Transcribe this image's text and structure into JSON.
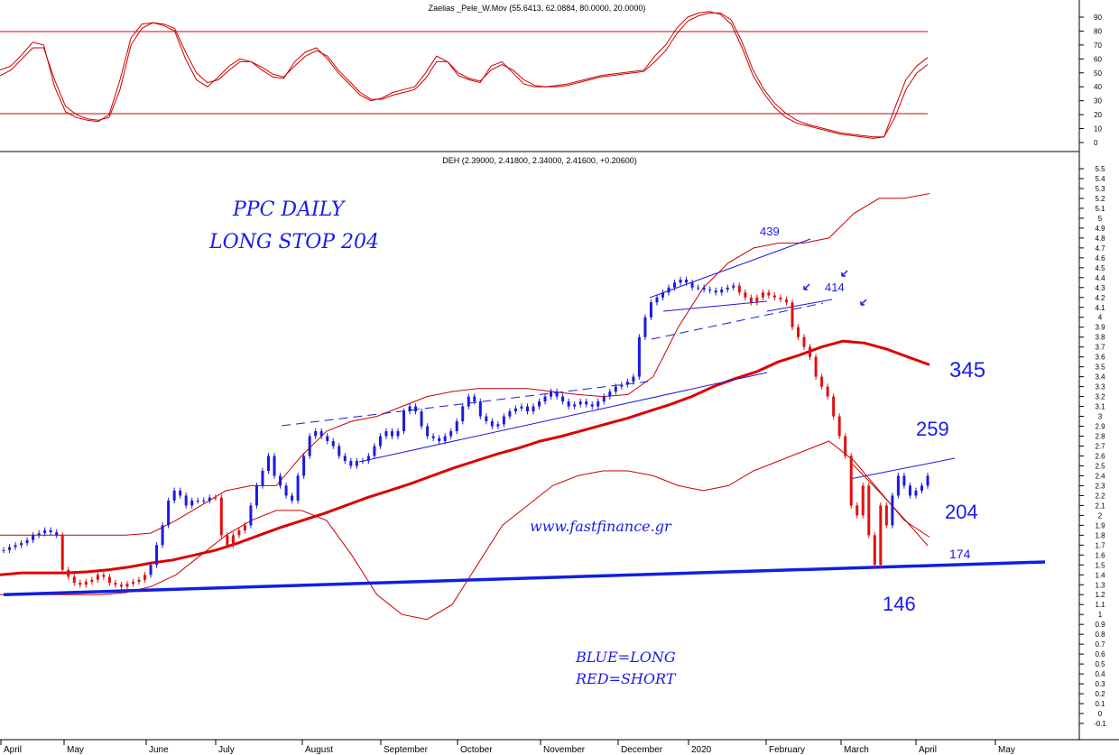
{
  "chart_data": [
    {
      "type": "line",
      "title": "Zaelias _Pele_W.Mov (55.6413, 62.0884, 80.0000, 20.0000)",
      "ylim": [
        -10,
        100
      ],
      "yticks": [
        0,
        10,
        20,
        30,
        40,
        50,
        60,
        70,
        80,
        90
      ],
      "reference_lines": [
        80,
        20
      ],
      "series": [
        {
          "values": [
            52,
            55,
            63,
            72,
            70,
            40,
            22,
            18,
            16,
            15,
            20,
            45,
            75,
            85,
            86,
            84,
            80,
            60,
            45,
            40,
            47,
            55,
            60,
            58,
            52,
            47,
            46,
            58,
            65,
            68,
            60,
            50,
            42,
            34,
            30,
            32,
            36,
            38,
            40,
            50,
            62,
            58,
            48,
            45,
            43,
            55,
            58,
            50,
            42,
            40,
            40,
            41,
            42,
            44,
            46,
            48,
            49,
            50,
            51,
            52,
            62,
            70,
            82,
            90,
            93,
            94,
            92,
            85,
            68,
            48,
            35,
            25,
            18,
            14,
            12,
            10,
            8,
            6,
            5,
            4,
            3,
            4,
            25,
            45,
            55,
            61
          ]
        },
        {
          "values": [
            48,
            52,
            60,
            68,
            68,
            45,
            26,
            20,
            17,
            16,
            18,
            38,
            70,
            82,
            86,
            85,
            82,
            65,
            50,
            43,
            45,
            52,
            58,
            58,
            54,
            49,
            47,
            55,
            62,
            66,
            62,
            52,
            44,
            36,
            31,
            31,
            34,
            36,
            38,
            46,
            58,
            58,
            50,
            46,
            44,
            52,
            56,
            52,
            45,
            41,
            40,
            40,
            41,
            43,
            45,
            47,
            48,
            49,
            50,
            51,
            58,
            66,
            78,
            87,
            91,
            93,
            93,
            88,
            72,
            52,
            38,
            28,
            21,
            16,
            13,
            11,
            9,
            7,
            6,
            5,
            4,
            4,
            18,
            38,
            50,
            56
          ]
        }
      ]
    },
    {
      "type": "candlestick",
      "title": "DEH (2.39000, 2.41800, 2.34000, 2.41600, +0.20600)",
      "ylim": [
        -0.15,
        5.6
      ],
      "yticks": [
        -0.1,
        0,
        0.1,
        0.2,
        0.3,
        0.4,
        0.5,
        0.6,
        0.7,
        0.8,
        0.9,
        1.0,
        1.1,
        1.2,
        1.3,
        1.4,
        1.5,
        1.6,
        1.7,
        1.8,
        1.9,
        2.0,
        2.1,
        2.2,
        2.3,
        2.4,
        2.5,
        2.6,
        2.7,
        2.8,
        2.9,
        3.0,
        3.1,
        3.2,
        3.3,
        3.4,
        3.5,
        3.6,
        3.7,
        3.8,
        3.9,
        4.0,
        4.1,
        4.2,
        4.3,
        4.4,
        4.5,
        4.6,
        4.7,
        4.8,
        4.9,
        5.0,
        5.1,
        5.2,
        5.3,
        5.4,
        5.5
      ],
      "x_categories": [
        "April",
        "May",
        "June",
        "July",
        "August",
        "September",
        "October",
        "November",
        "December",
        "2020",
        "February",
        "March",
        "April",
        "May"
      ],
      "closes": [
        1.65,
        1.68,
        1.7,
        1.72,
        1.75,
        1.8,
        1.82,
        1.85,
        1.83,
        1.8,
        1.45,
        1.38,
        1.32,
        1.3,
        1.33,
        1.35,
        1.4,
        1.38,
        1.32,
        1.3,
        1.28,
        1.31,
        1.33,
        1.35,
        1.4,
        1.5,
        1.7,
        1.9,
        2.15,
        2.25,
        2.2,
        2.1,
        2.15,
        2.15,
        2.15,
        2.18,
        2.18,
        1.8,
        1.7,
        1.8,
        1.85,
        1.9,
        2.1,
        2.3,
        2.45,
        2.6,
        2.4,
        2.3,
        2.2,
        2.15,
        2.4,
        2.6,
        2.8,
        2.85,
        2.8,
        2.75,
        2.7,
        2.6,
        2.55,
        2.5,
        2.55,
        2.55,
        2.6,
        2.7,
        2.8,
        2.85,
        2.8,
        2.85,
        3.05,
        3.1,
        3.05,
        2.9,
        2.8,
        2.78,
        2.75,
        2.8,
        2.85,
        2.95,
        3.1,
        3.2,
        3.15,
        3.0,
        2.95,
        2.9,
        2.92,
        3.0,
        3.05,
        3.08,
        3.1,
        3.05,
        3.1,
        3.15,
        3.2,
        3.25,
        3.2,
        3.15,
        3.1,
        3.12,
        3.15,
        3.12,
        3.1,
        3.15,
        3.2,
        3.25,
        3.3,
        3.32,
        3.35,
        3.4,
        3.8,
        4.0,
        4.15,
        4.2,
        4.25,
        4.3,
        4.35,
        4.38,
        4.35,
        4.3,
        4.3,
        4.28,
        4.27,
        4.25,
        4.28,
        4.3,
        4.32,
        4.25,
        4.2,
        4.15,
        4.2,
        4.25,
        4.22,
        4.2,
        4.18,
        4.15,
        3.9,
        3.8,
        3.7,
        3.6,
        3.4,
        3.3,
        3.2,
        3.0,
        2.8,
        2.6,
        2.1,
        2.0,
        2.3,
        1.8,
        1.5,
        2.1,
        1.9,
        2.2,
        2.4,
        2.3,
        2.2,
        2.25,
        2.3,
        2.4
      ],
      "moving_average": [
        1.4,
        1.42,
        1.42,
        1.42,
        1.43,
        1.45,
        1.48,
        1.52,
        1.55,
        1.6,
        1.65,
        1.72,
        1.8,
        1.88,
        1.95,
        2.02,
        2.1,
        2.18,
        2.25,
        2.32,
        2.4,
        2.48,
        2.55,
        2.62,
        2.68,
        2.75,
        2.8,
        2.86,
        2.92,
        2.98,
        3.05,
        3.12,
        3.2,
        3.3,
        3.38,
        3.45,
        3.55,
        3.62,
        3.7,
        3.76,
        3.74,
        3.68,
        3.6,
        3.52
      ],
      "upper_band": [
        1.8,
        1.8,
        1.8,
        1.8,
        1.8,
        1.8,
        1.82,
        1.95,
        2.1,
        2.25,
        2.3,
        2.3,
        2.6,
        2.85,
        2.95,
        3.0,
        3.1,
        3.2,
        3.25,
        3.28,
        3.28,
        3.28,
        3.25,
        3.22,
        3.2,
        3.22,
        3.4,
        3.9,
        4.3,
        4.55,
        4.7,
        4.75,
        4.75,
        4.8,
        5.05,
        5.2,
        5.2,
        5.25
      ],
      "lower_band": [
        1.2,
        1.2,
        1.2,
        1.2,
        1.2,
        1.22,
        1.28,
        1.4,
        1.6,
        1.8,
        1.95,
        2.05,
        2.05,
        1.95,
        1.6,
        1.2,
        1.0,
        0.95,
        1.1,
        1.5,
        1.9,
        2.1,
        2.3,
        2.4,
        2.45,
        2.45,
        2.4,
        2.3,
        2.25,
        2.3,
        2.45,
        2.55,
        2.65,
        2.75,
        2.55,
        2.25,
        1.95,
        1.78
      ],
      "long_trendline": [
        [
          0,
          1.2
        ],
        [
          183,
          1.53
        ]
      ],
      "labels": [
        "439",
        "414",
        "345",
        "259",
        "204",
        "174",
        "146"
      ],
      "annotations": [
        "PPC DAILY",
        "LONG STOP 204",
        "www.fastfinance.gr",
        "BLUE=LONG",
        "RED=SHORT"
      ]
    }
  ]
}
